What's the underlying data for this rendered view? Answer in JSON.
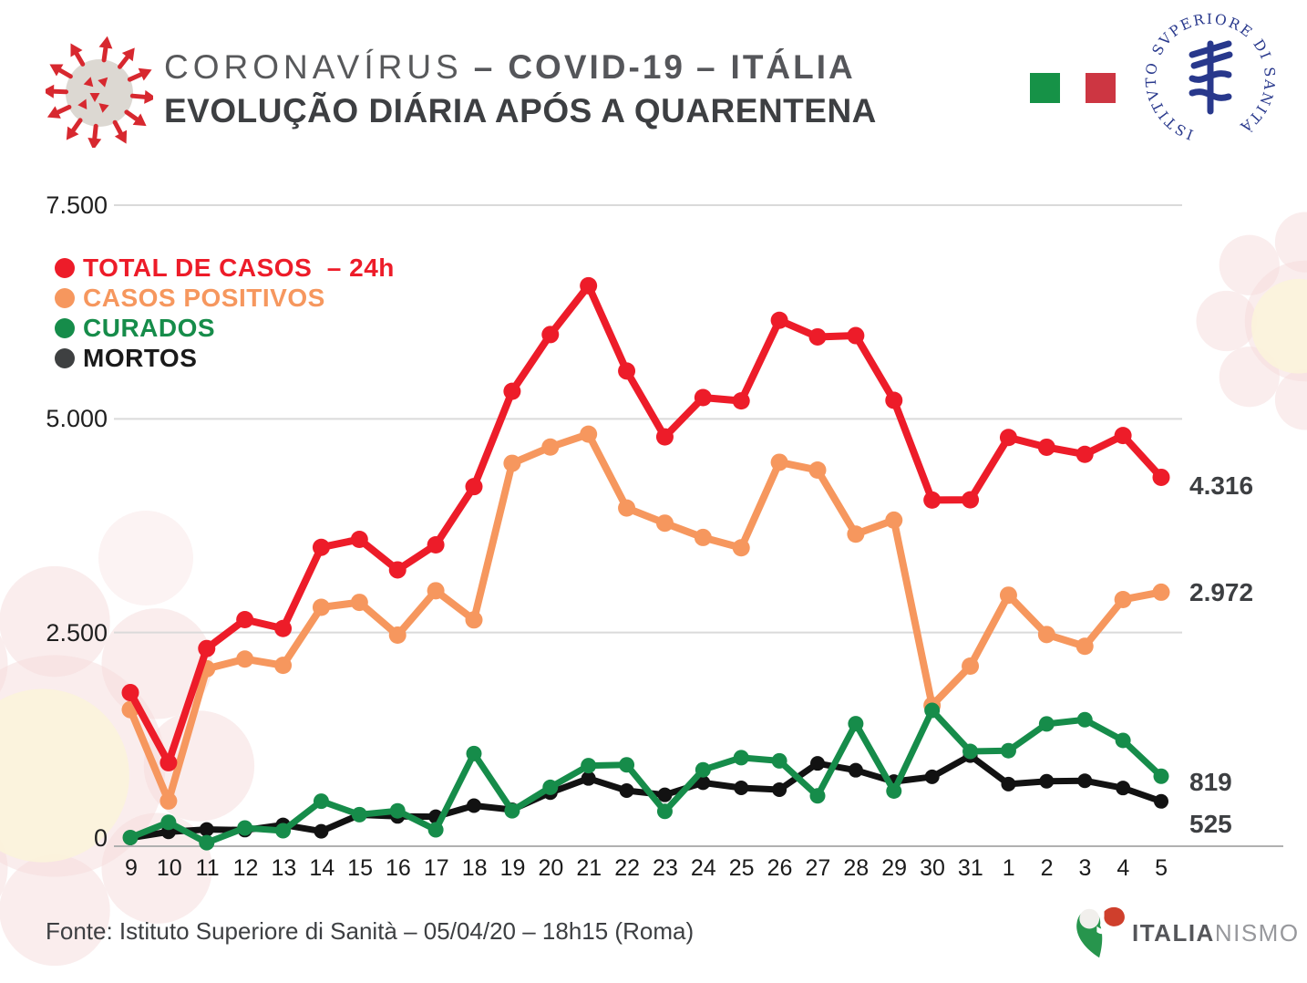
{
  "header": {
    "title_light": "CORONAVÍRUS",
    "dash": "–",
    "title_bold_1": "COVID-19",
    "title_bold_2": "ITÁLIA",
    "subtitle": "EVOLUÇÃO DIÁRIA APÓS A QUARENTENA",
    "iss_text": "ISTITVTO SVPERIORE DI SANITÀ",
    "flag": {
      "green": "#169247",
      "red": "#cd3642"
    }
  },
  "legend": {
    "items": [
      {
        "label": "TOTAL DE CASOS  – 24h",
        "color": "#ed1c29",
        "text_color": "#ed1c29"
      },
      {
        "label": "CASOS POSITIVOS",
        "color": "#f6975e",
        "text_color": "#f6975e"
      },
      {
        "label": "CURADOS",
        "color": "#168c4a",
        "text_color": "#168c4a"
      },
      {
        "label": "MORTOS",
        "color": "#3e4041",
        "text_color": "#1a1a1a"
      }
    ]
  },
  "chart_data": {
    "type": "line",
    "title": "EVOLUÇÃO DIÁRIA APÓS A QUARENTENA",
    "subtitle": "CORONAVÍRUS – COVID-19 – ITÁLIA",
    "xlabel": "",
    "ylabel": "",
    "categories": [
      "9",
      "10",
      "11",
      "12",
      "13",
      "14",
      "15",
      "16",
      "17",
      "18",
      "19",
      "20",
      "21",
      "22",
      "23",
      "24",
      "25",
      "26",
      "27",
      "28",
      "29",
      "30",
      "31",
      "1",
      "2",
      "3",
      "4",
      "5"
    ],
    "ylim": [
      0,
      7500
    ],
    "yticks": [
      {
        "value": 0,
        "label": "0"
      },
      {
        "value": 2500,
        "label": "2.500"
      },
      {
        "value": 5000,
        "label": "5.000"
      },
      {
        "value": 7500,
        "label": "7.500"
      }
    ],
    "grid": "horizontal",
    "grid_color": "#dadada",
    "axis_color": "#b0b0b0",
    "legend_position": "top-left-inside",
    "draw_order": [
      "casos_positivos",
      "mortos",
      "curados",
      "total_de_casos"
    ],
    "series": [
      {
        "id": "total_de_casos",
        "name": "TOTAL DE CASOS – 24h",
        "color": "#ed1c29",
        "line_width": 8,
        "dot_radius": 9.5,
        "values": [
          1797,
          977,
          2313,
          2651,
          2547,
          3497,
          3590,
          3233,
          3526,
          4207,
          5322,
          5986,
          6557,
          5560,
          4789,
          5249,
          5210,
          6153,
          5959,
          5974,
          5217,
          4050,
          4053,
          4782,
          4668,
          4585,
          4805,
          4316
        ]
      },
      {
        "id": "casos_positivos",
        "name": "CASOS POSITIVOS",
        "color": "#f6975e",
        "line_width": 8,
        "dot_radius": 9.5,
        "values": [
          1598,
          529,
          2076,
          2190,
          2116,
          2795,
          2853,
          2470,
          2989,
          2648,
          4480,
          4670,
          4821,
          3957,
          3780,
          3612,
          3491,
          4492,
          4401,
          3651,
          3815,
          1648,
          2107,
          2937,
          2477,
          2339,
          2886,
          2972
        ]
      },
      {
        "id": "curados",
        "name": "CURADOS",
        "color": "#168c4a",
        "line_width": 7,
        "dot_radius": 8.5,
        "values": [
          102,
          280,
          41,
          213,
          181,
          527,
          369,
          414,
          192,
          1084,
          415,
          689,
          943,
          952,
          408,
          894,
          1036,
          999,
          589,
          1434,
          646,
          1590,
          1109,
          1118,
          1431,
          1480,
          1238,
          819
        ]
      },
      {
        "id": "mortos",
        "name": "MORTOS",
        "color": "#121212",
        "line_width": 7,
        "dot_radius": 8,
        "values": [
          97,
          168,
          196,
          189,
          250,
          175,
          368,
          349,
          345,
          475,
          427,
          627,
          793,
          651,
          601,
          743,
          683,
          662,
          969,
          889,
          756,
          812,
          1060,
          727,
          760,
          766,
          681,
          525
        ]
      }
    ],
    "end_labels": [
      {
        "text": "4.316",
        "series": "total_de_casos"
      },
      {
        "text": "2.972",
        "series": "casos_positivos"
      },
      {
        "text": "819",
        "series": "curados"
      },
      {
        "text": "525",
        "series": "mortos"
      }
    ]
  },
  "footer": {
    "source": "Fonte: Istituto Superiore di Sanità – 05/04/20 – 18h15 (Roma)",
    "brand_bold": "ITALIA",
    "brand_light": "NISMO"
  }
}
